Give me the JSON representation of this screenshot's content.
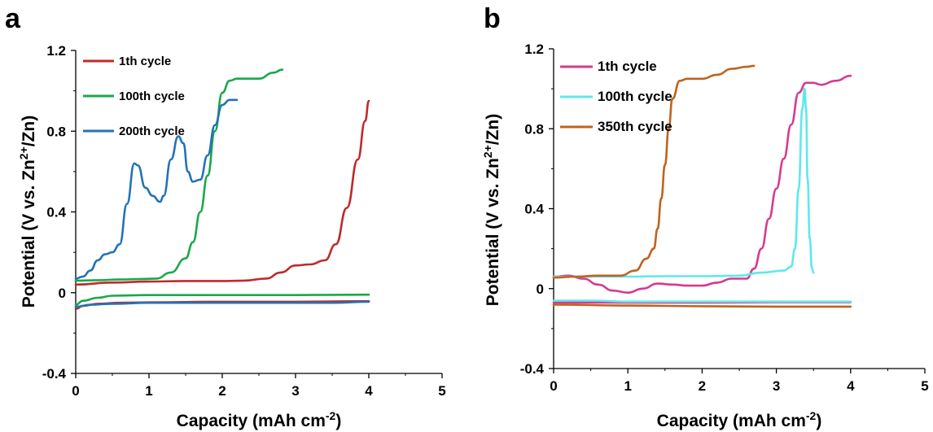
{
  "chart_data": [
    {
      "panel_label": "a",
      "type": "line",
      "xlabel": "Capacity (mAh cm",
      "xlabel_sup": "-2",
      "xlabel_end": ")",
      "ylabel": "Potential (V vs. Zn",
      "ylabel_sup": "2+",
      "ylabel_end": "/Zn)",
      "xlim": [
        0,
        5
      ],
      "ylim": [
        -0.4,
        1.2
      ],
      "xticks": [
        "0",
        "1",
        "2",
        "3",
        "4",
        "5"
      ],
      "yticks": [
        "-0.4",
        "0",
        "0.4",
        "0.8",
        "1.2"
      ],
      "legend_position": "top-left",
      "grid": false,
      "series": [
        {
          "name": "1th cycle",
          "color": "#c0292b",
          "charge": [
            [
              0,
              0.04
            ],
            [
              0.5,
              0.05
            ],
            [
              1,
              0.055
            ],
            [
              1.5,
              0.058
            ],
            [
              2,
              0.058
            ],
            [
              2.3,
              0.06
            ],
            [
              2.6,
              0.07
            ],
            [
              2.8,
              0.1
            ],
            [
              3,
              0.135
            ],
            [
              3.2,
              0.14
            ],
            [
              3.4,
              0.16
            ],
            [
              3.55,
              0.24
            ],
            [
              3.7,
              0.42
            ],
            [
              3.85,
              0.66
            ],
            [
              3.95,
              0.85
            ],
            [
              4,
              0.95
            ]
          ],
          "discharge": [
            [
              0,
              -0.08
            ],
            [
              0.1,
              -0.065
            ],
            [
              0.3,
              -0.055
            ],
            [
              0.6,
              -0.05
            ],
            [
              1,
              -0.048
            ],
            [
              2,
              -0.045
            ],
            [
              3,
              -0.045
            ],
            [
              4,
              -0.042
            ]
          ]
        },
        {
          "name": "100th cycle",
          "color": "#1aa84a",
          "charge": [
            [
              0,
              0.06
            ],
            [
              0.3,
              0.062
            ],
            [
              0.6,
              0.065
            ],
            [
              0.9,
              0.068
            ],
            [
              1.1,
              0.07
            ],
            [
              1.3,
              0.1
            ],
            [
              1.5,
              0.17
            ],
            [
              1.6,
              0.25
            ],
            [
              1.7,
              0.4
            ],
            [
              1.8,
              0.58
            ],
            [
              1.9,
              0.8
            ],
            [
              2,
              0.99
            ],
            [
              2.1,
              1.05
            ],
            [
              2.2,
              1.06
            ],
            [
              2.3,
              1.06
            ],
            [
              2.5,
              1.06
            ],
            [
              2.7,
              1.09
            ],
            [
              2.82,
              1.105
            ]
          ],
          "discharge": [
            [
              0,
              -0.06
            ],
            [
              0.1,
              -0.04
            ],
            [
              0.3,
              -0.025
            ],
            [
              0.5,
              -0.015
            ],
            [
              1,
              -0.012
            ],
            [
              2,
              -0.012
            ],
            [
              3,
              -0.012
            ],
            [
              4,
              -0.01
            ]
          ]
        },
        {
          "name": "200th cycle",
          "color": "#2472b6",
          "charge": [
            [
              0,
              0.07
            ],
            [
              0.1,
              0.08
            ],
            [
              0.2,
              0.11
            ],
            [
              0.3,
              0.16
            ],
            [
              0.4,
              0.19
            ],
            [
              0.5,
              0.2
            ],
            [
              0.6,
              0.24
            ],
            [
              0.7,
              0.44
            ],
            [
              0.8,
              0.64
            ],
            [
              0.85,
              0.63
            ],
            [
              0.95,
              0.52
            ],
            [
              1.05,
              0.48
            ],
            [
              1.15,
              0.45
            ],
            [
              1.2,
              0.48
            ],
            [
              1.3,
              0.66
            ],
            [
              1.4,
              0.775
            ],
            [
              1.47,
              0.74
            ],
            [
              1.53,
              0.6
            ],
            [
              1.6,
              0.55
            ],
            [
              1.7,
              0.56
            ],
            [
              1.8,
              0.68
            ],
            [
              1.9,
              0.83
            ],
            [
              2,
              0.93
            ],
            [
              2.1,
              0.955
            ],
            [
              2.2,
              0.955
            ]
          ],
          "discharge": [
            [
              0,
              -0.07
            ],
            [
              0.2,
              -0.06
            ],
            [
              0.5,
              -0.055
            ],
            [
              1,
              -0.05
            ],
            [
              2,
              -0.05
            ],
            [
              3,
              -0.05
            ],
            [
              3.5,
              -0.05
            ],
            [
              4,
              -0.045
            ]
          ]
        }
      ]
    },
    {
      "panel_label": "b",
      "type": "line",
      "xlabel": "Capacity (mAh cm",
      "xlabel_sup": "-2",
      "xlabel_end": ")",
      "ylabel": "Potential (V vs. Zn",
      "ylabel_sup": "2+",
      "ylabel_end": "/Zn)",
      "xlim": [
        0,
        5
      ],
      "ylim": [
        -0.4,
        1.2
      ],
      "xticks": [
        "0",
        "1",
        "2",
        "3",
        "4",
        "5"
      ],
      "yticks": [
        "-0.4",
        "0",
        "0.4",
        "0.8",
        "1.2"
      ],
      "legend_position": "top-left",
      "grid": false,
      "series": [
        {
          "name": "1th cycle",
          "color": "#d63a8f",
          "charge": [
            [
              0,
              0.06
            ],
            [
              0.2,
              0.065
            ],
            [
              0.4,
              0.05
            ],
            [
              0.6,
              0.02
            ],
            [
              0.8,
              -0.01
            ],
            [
              1,
              -0.02
            ],
            [
              1.2,
              0.0
            ],
            [
              1.4,
              0.025
            ],
            [
              1.6,
              0.02
            ],
            [
              1.8,
              0.015
            ],
            [
              2,
              0.015
            ],
            [
              2.2,
              0.03
            ],
            [
              2.4,
              0.05
            ],
            [
              2.6,
              0.05
            ],
            [
              2.7,
              0.1
            ],
            [
              2.8,
              0.2
            ],
            [
              2.9,
              0.35
            ],
            [
              3,
              0.5
            ],
            [
              3.1,
              0.65
            ],
            [
              3.2,
              0.82
            ],
            [
              3.3,
              0.98
            ],
            [
              3.4,
              1.03
            ],
            [
              3.5,
              1.03
            ],
            [
              3.6,
              1.02
            ],
            [
              3.8,
              1.04
            ],
            [
              4,
              1.065
            ]
          ],
          "discharge": [
            [
              0,
              -0.07
            ],
            [
              1,
              -0.07
            ],
            [
              2,
              -0.07
            ],
            [
              3,
              -0.068
            ],
            [
              4,
              -0.068
            ]
          ]
        },
        {
          "name": "100th cycle",
          "color": "#5ee8ec",
          "charge": [
            [
              0,
              0.06
            ],
            [
              0.5,
              0.06
            ],
            [
              1,
              0.06
            ],
            [
              1.5,
              0.062
            ],
            [
              2,
              0.062
            ],
            [
              2.5,
              0.065
            ],
            [
              2.8,
              0.08
            ],
            [
              3.1,
              0.09
            ],
            [
              3.2,
              0.11
            ],
            [
              3.25,
              0.2
            ],
            [
              3.3,
              0.5
            ],
            [
              3.35,
              0.9
            ],
            [
              3.38,
              1.0
            ],
            [
              3.4,
              0.9
            ],
            [
              3.42,
              0.55
            ],
            [
              3.45,
              0.25
            ],
            [
              3.48,
              0.1
            ],
            [
              3.5,
              0.08
            ]
          ],
          "discharge": [
            [
              0,
              -0.06
            ],
            [
              0.5,
              -0.06
            ],
            [
              1,
              -0.065
            ],
            [
              2,
              -0.065
            ],
            [
              3,
              -0.065
            ],
            [
              4,
              -0.065
            ]
          ]
        },
        {
          "name": "350th cycle",
          "color": "#c0621e",
          "charge": [
            [
              0,
              0.055
            ],
            [
              0.3,
              0.06
            ],
            [
              0.6,
              0.065
            ],
            [
              0.9,
              0.065
            ],
            [
              1.1,
              0.09
            ],
            [
              1.25,
              0.15
            ],
            [
              1.35,
              0.2
            ],
            [
              1.4,
              0.3
            ],
            [
              1.45,
              0.45
            ],
            [
              1.5,
              0.62
            ],
            [
              1.55,
              0.8
            ],
            [
              1.6,
              0.95
            ],
            [
              1.7,
              1.04
            ],
            [
              1.8,
              1.05
            ],
            [
              1.9,
              1.05
            ],
            [
              2,
              1.05
            ],
            [
              2.2,
              1.07
            ],
            [
              2.4,
              1.1
            ],
            [
              2.6,
              1.11
            ],
            [
              2.7,
              1.115
            ]
          ],
          "discharge": [
            [
              0,
              -0.08
            ],
            [
              1,
              -0.085
            ],
            [
              2,
              -0.088
            ],
            [
              3,
              -0.09
            ],
            [
              4,
              -0.09
            ]
          ]
        }
      ]
    }
  ]
}
